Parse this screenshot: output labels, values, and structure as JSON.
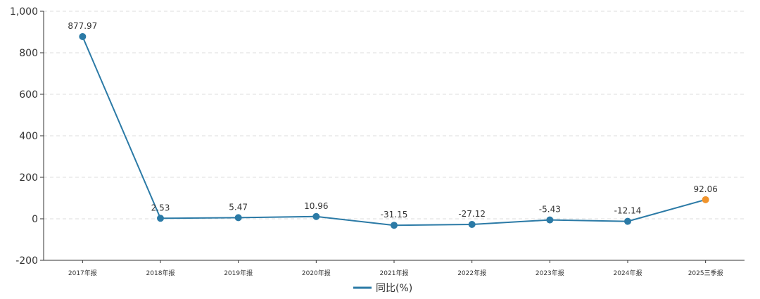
{
  "chart_data": {
    "type": "line",
    "categories": [
      "2017年报",
      "2018年报",
      "2019年报",
      "2020年报",
      "2021年报",
      "2022年报",
      "2023年报",
      "2024年报",
      "2025三季报"
    ],
    "series": [
      {
        "name": "同比(%)",
        "values": [
          877.97,
          2.53,
          5.47,
          10.96,
          -31.15,
          -27.12,
          -5.43,
          -12.14,
          92.06
        ],
        "value_labels": [
          "877.97",
          "2.53",
          "5.47",
          "10.96",
          "-31.15",
          "-27.12",
          "-5.43",
          "-12.14",
          "92.06"
        ],
        "color": "#2b7aa6",
        "highlight_last_color": "#f0932b"
      }
    ],
    "ylim": [
      -200,
      1000
    ],
    "yticks": [
      -200,
      0,
      200,
      400,
      600,
      800,
      1000
    ],
    "ytick_labels": [
      "-200",
      "0",
      "200",
      "400",
      "600",
      "800",
      "1,000"
    ],
    "grid": true,
    "legend": "bottom-center",
    "title": "",
    "xlabel": "",
    "ylabel": ""
  }
}
